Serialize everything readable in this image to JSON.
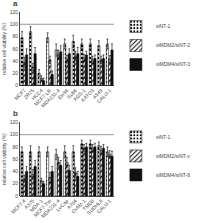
{
  "chart_data": [
    {
      "type": "bar",
      "title": "a",
      "ylabel": "relative cell viability (%)",
      "categories": [
        "MCF7",
        "ZR75",
        "HCC4",
        "MCF7-LR",
        "MDA231-4",
        "Ew36",
        "Su86",
        "AGS-1",
        "KATO3",
        "A549",
        "CALU-1"
      ],
      "series": [
        {
          "name": "siNT-1",
          "color": "#d3d3d3",
          "values": [
            78,
            88,
            20,
            78,
            58,
            68,
            72,
            68,
            68,
            65,
            68
          ],
          "errors": [
            10,
            8,
            6,
            8,
            10,
            8,
            10,
            8,
            8,
            8,
            8
          ]
        },
        {
          "name": "siMDM2/siNT-2",
          "color": "#888888",
          "values": [
            38,
            30,
            12,
            42,
            50,
            43,
            48,
            45,
            42,
            42,
            43
          ],
          "errors": [
            8,
            6,
            4,
            6,
            8,
            6,
            8,
            6,
            6,
            6,
            6
          ]
        },
        {
          "name": "siMDM4/siNT-3",
          "color": "#111111",
          "values": [
            50,
            52,
            8,
            18,
            55,
            52,
            52,
            50,
            44,
            44,
            58
          ],
          "errors": [
            10,
            10,
            4,
            6,
            10,
            8,
            10,
            6,
            6,
            6,
            10
          ]
        }
      ],
      "ylim": [
        0,
        120
      ],
      "yticks": [
        0,
        20,
        40,
        60,
        80,
        100,
        120
      ],
      "hline": 100,
      "legend": "upper right",
      "grid": false
    },
    {
      "type": "bar",
      "title": "b",
      "ylabel": "relative cell viability (%)",
      "categories": [
        "MCF7-4",
        "A375",
        "MDA-1",
        "MCF7-Tm",
        "MDA231-4",
        "LuCap",
        "A704",
        "OvMz-1",
        "TMD8",
        "SUDHL6",
        "CALU-1"
      ],
      "series": [
        {
          "name": "siNT-1",
          "color": "#d3d3d3",
          "values": [
            72,
            72,
            72,
            72,
            68,
            72,
            72,
            85,
            85,
            82,
            72
          ],
          "errors": [
            8,
            10,
            8,
            8,
            8,
            10,
            10,
            6,
            6,
            6,
            8
          ]
        },
        {
          "name": "siMDM2/siNT-v",
          "color": "#888888",
          "values": [
            28,
            35,
            25,
            30,
            55,
            55,
            38,
            78,
            78,
            75,
            68
          ],
          "errors": [
            6,
            8,
            4,
            8,
            8,
            8,
            8,
            6,
            6,
            6,
            6
          ]
        },
        {
          "name": "siMDM4/siNT-8",
          "color": "#111111",
          "values": [
            40,
            48,
            20,
            40,
            50,
            42,
            32,
            80,
            80,
            78,
            65
          ],
          "errors": [
            8,
            10,
            4,
            8,
            8,
            8,
            8,
            6,
            6,
            6,
            8
          ]
        }
      ],
      "ylim": [
        0,
        120
      ],
      "yticks": [
        0,
        20,
        40,
        60,
        80,
        100,
        120
      ],
      "hline": 100,
      "legend": "upper right",
      "grid": false
    }
  ]
}
